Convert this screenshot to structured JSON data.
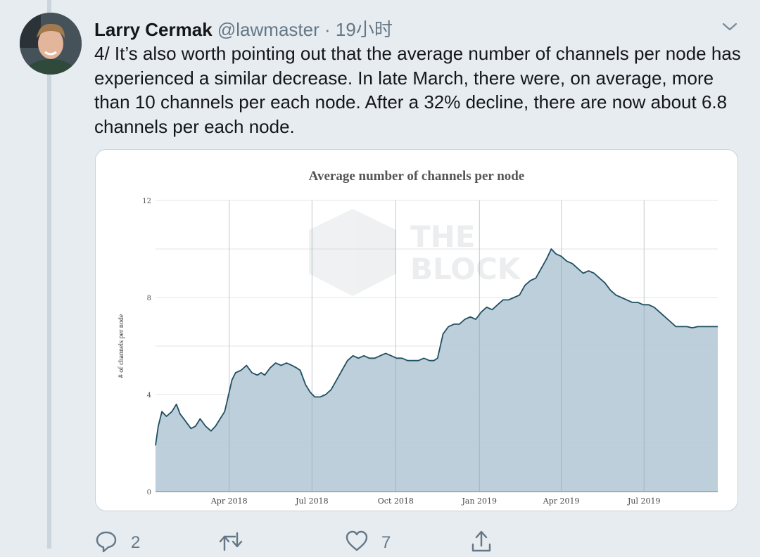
{
  "tweet": {
    "author_name": "Larry Cermak",
    "handle": "@lawmaster",
    "separator": "·",
    "time": "19小时",
    "text": "4/ It’s also worth pointing out that the average number of channels per node has experienced a similar decrease. In late March, there were, on average, more than 10 channels per each node. After a 32% decline, there are now about 6.8 channels per each node.",
    "actions": {
      "reply_count": "2",
      "retweet_count": "",
      "like_count": "7"
    },
    "icons": [
      "avatar",
      "chevron-down-icon",
      "reply-icon",
      "retweet-icon",
      "like-icon",
      "share-icon"
    ]
  },
  "chart_data": {
    "type": "area",
    "title": "Average number of channels per node",
    "ylabel": "# of channels per node",
    "watermark": [
      "THE",
      "BLOCK"
    ],
    "xlim": [
      "2018-01-10",
      "2019-09-20"
    ],
    "ylim": [
      0,
      12
    ],
    "yticks": [
      0,
      4,
      8,
      12
    ],
    "xticks": [
      {
        "date": "2018-04-01",
        "label": "Apr 2018"
      },
      {
        "date": "2018-07-01",
        "label": "Jul 2018"
      },
      {
        "date": "2018-10-01",
        "label": "Oct 2018"
      },
      {
        "date": "2019-01-01",
        "label": "Jan 2019"
      },
      {
        "date": "2019-04-01",
        "label": "Apr 2019"
      },
      {
        "date": "2019-07-01",
        "label": "Jul 2019"
      }
    ],
    "grid": true,
    "colors": {
      "line": "#1f4f62",
      "fill": "#b8ccd8",
      "grid": "#e6e6e6"
    },
    "series": [
      {
        "x": [
          "2018-01-10",
          "2018-01-13",
          "2018-01-17",
          "2018-01-22",
          "2018-01-28",
          "2018-02-02",
          "2018-02-06",
          "2018-02-12",
          "2018-02-18",
          "2018-02-23",
          "2018-02-28",
          "2018-03-06",
          "2018-03-12",
          "2018-03-17",
          "2018-03-22",
          "2018-03-27",
          "2018-04-01",
          "2018-04-04",
          "2018-04-08",
          "2018-04-14",
          "2018-04-20",
          "2018-04-26",
          "2018-05-02",
          "2018-05-06",
          "2018-05-10",
          "2018-05-16",
          "2018-05-22",
          "2018-05-28",
          "2018-06-03",
          "2018-06-09",
          "2018-06-14",
          "2018-06-18",
          "2018-06-24",
          "2018-06-29",
          "2018-07-04",
          "2018-07-10",
          "2018-07-16",
          "2018-07-22",
          "2018-07-28",
          "2018-08-03",
          "2018-08-09",
          "2018-08-15",
          "2018-08-21",
          "2018-08-27",
          "2018-09-02",
          "2018-09-08",
          "2018-09-14",
          "2018-09-20",
          "2018-09-26",
          "2018-10-02",
          "2018-10-08",
          "2018-10-14",
          "2018-10-20",
          "2018-10-26",
          "2018-11-01",
          "2018-11-07",
          "2018-11-12",
          "2018-11-16",
          "2018-11-22",
          "2018-11-28",
          "2018-12-04",
          "2018-12-10",
          "2018-12-16",
          "2018-12-22",
          "2018-12-28",
          "2019-01-03",
          "2019-01-09",
          "2019-01-15",
          "2019-01-21",
          "2019-01-27",
          "2019-02-02",
          "2019-02-08",
          "2019-02-14",
          "2019-02-20",
          "2019-02-26",
          "2019-03-04",
          "2019-03-10",
          "2019-03-16",
          "2019-03-21",
          "2019-03-26",
          "2019-04-01",
          "2019-04-07",
          "2019-04-13",
          "2019-04-19",
          "2019-04-25",
          "2019-05-01",
          "2019-05-07",
          "2019-05-13",
          "2019-05-19",
          "2019-05-25",
          "2019-05-31",
          "2019-06-06",
          "2019-06-12",
          "2019-06-18",
          "2019-06-24",
          "2019-06-30",
          "2019-07-06",
          "2019-07-12",
          "2019-07-18",
          "2019-07-24",
          "2019-07-30",
          "2019-08-05",
          "2019-08-11",
          "2019-08-17",
          "2019-08-23",
          "2019-08-29",
          "2019-09-04",
          "2019-09-10",
          "2019-09-16",
          "2019-09-20"
        ],
        "y": [
          1.9,
          2.7,
          3.3,
          3.1,
          3.3,
          3.6,
          3.2,
          2.9,
          2.6,
          2.7,
          3.0,
          2.7,
          2.5,
          2.7,
          3.0,
          3.3,
          4.1,
          4.6,
          4.9,
          5.0,
          5.2,
          4.9,
          4.8,
          4.9,
          4.8,
          5.1,
          5.3,
          5.2,
          5.3,
          5.2,
          5.1,
          5.0,
          4.4,
          4.1,
          3.9,
          3.9,
          4.0,
          4.2,
          4.6,
          5.0,
          5.4,
          5.6,
          5.5,
          5.6,
          5.5,
          5.5,
          5.6,
          5.7,
          5.6,
          5.5,
          5.5,
          5.4,
          5.4,
          5.4,
          5.5,
          5.4,
          5.4,
          5.5,
          6.5,
          6.8,
          6.9,
          6.9,
          7.1,
          7.2,
          7.1,
          7.4,
          7.6,
          7.5,
          7.7,
          7.9,
          7.9,
          8.0,
          8.1,
          8.5,
          8.7,
          8.8,
          9.2,
          9.6,
          10.0,
          9.8,
          9.7,
          9.5,
          9.4,
          9.2,
          9.0,
          9.1,
          9.0,
          8.8,
          8.6,
          8.3,
          8.1,
          8.0,
          7.9,
          7.8,
          7.8,
          7.7,
          7.7,
          7.6,
          7.4,
          7.2,
          7.0,
          6.8,
          6.8,
          6.8,
          6.75,
          6.8,
          6.8,
          6.8,
          6.8,
          6.8
        ]
      }
    ]
  }
}
